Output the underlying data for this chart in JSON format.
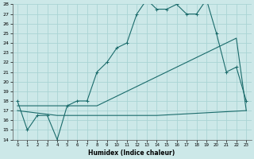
{
  "title": "",
  "xlabel": "Humidex (Indice chaleur)",
  "background_color": "#cce8e8",
  "grid_color": "#aad4d4",
  "line_color": "#1a6b6b",
  "ylim": [
    14,
    28
  ],
  "xlim": [
    0,
    23
  ],
  "yticks": [
    14,
    15,
    16,
    17,
    18,
    19,
    20,
    21,
    22,
    23,
    24,
    25,
    26,
    27,
    28
  ],
  "xtick_labels": [
    "0",
    "1",
    "2",
    "3",
    "4",
    "5",
    "6",
    "7",
    "8",
    "9",
    "10",
    "11",
    "12",
    "13",
    "14",
    "15",
    "16",
    "17",
    "18",
    "19",
    "20",
    "21",
    "22",
    "23"
  ],
  "curve1_x": [
    0,
    1,
    2,
    3,
    4,
    5,
    6,
    7,
    8,
    9,
    10,
    11,
    12,
    13,
    14,
    15,
    16,
    17,
    18,
    19,
    20,
    21,
    22,
    23
  ],
  "curve1_y": [
    18,
    15,
    16.5,
    16.5,
    14,
    17.5,
    18,
    18,
    21,
    22,
    23.5,
    24,
    27,
    28.5,
    27.5,
    27.5,
    28,
    27,
    27,
    28.5,
    25,
    21,
    21.5,
    18
  ],
  "curve2_x": [
    0,
    1,
    2,
    3,
    4,
    5,
    6,
    7,
    8,
    9,
    10,
    11,
    12,
    13,
    14,
    15,
    16,
    17,
    18,
    19,
    20,
    21,
    22,
    23
  ],
  "curve2_y": [
    17.5,
    17.5,
    17.5,
    17.5,
    17.5,
    17.5,
    17.5,
    17.5,
    17.5,
    18,
    18.5,
    19,
    19.5,
    20,
    20.5,
    21,
    21.5,
    22,
    22.5,
    23,
    23.5,
    24,
    24.5,
    17
  ],
  "curve3_x": [
    0,
    4,
    14,
    23
  ],
  "curve3_y": [
    17,
    16.5,
    16.5,
    17
  ],
  "marker": "+"
}
